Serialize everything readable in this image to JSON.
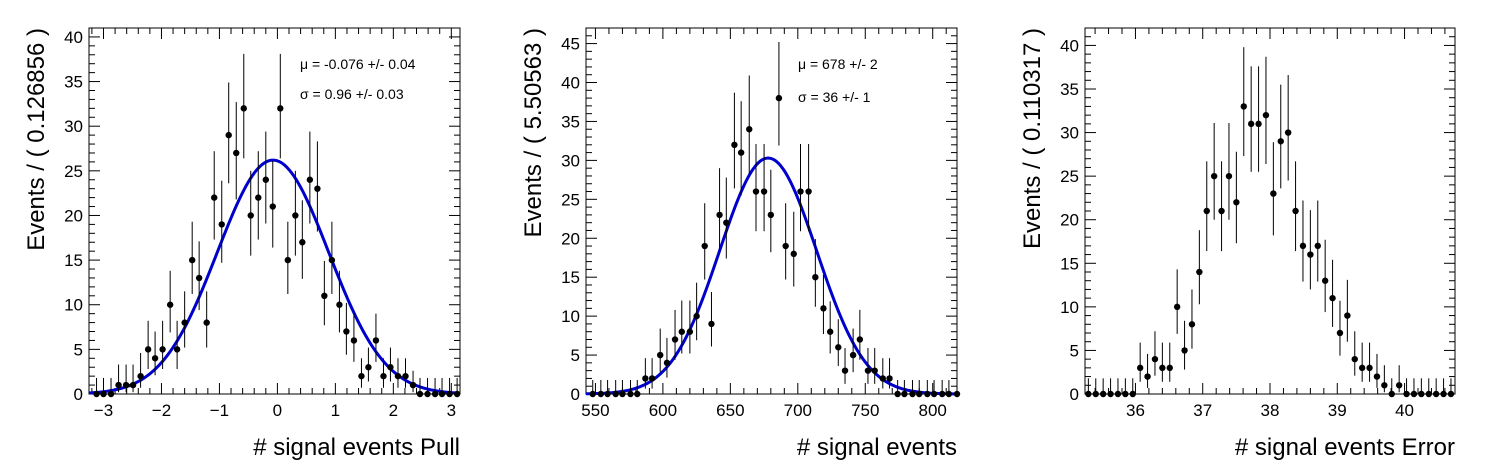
{
  "chart_data": [
    {
      "type": "scatter",
      "xlabel": "# signal events Pull",
      "ylabel": "Events / ( 0.126856 )",
      "xlim": [
        -3.25,
        3.15
      ],
      "ylim": [
        0,
        41
      ],
      "xticks": [
        -3,
        -2,
        -1,
        0,
        1,
        2,
        3
      ],
      "xtick_labels": [
        "−3",
        "−2",
        "−1",
        "0",
        "1",
        "2",
        "3"
      ],
      "yticks": [
        0,
        5,
        10,
        15,
        20,
        25,
        30,
        35,
        40
      ],
      "ytick_labels": [
        "0",
        "5",
        "10",
        "15",
        "20",
        "25",
        "30",
        "35",
        "40"
      ],
      "annotations": [
        "μ = -0.076 +/- 0.04",
        "σ =  0.96 +/- 0.03"
      ],
      "fit": {
        "mu": -0.076,
        "sigma": 0.96,
        "amplitude": 26.2,
        "color": "#0000cc"
      },
      "series": [
        {
          "x": [
            -3.12,
            -3.0,
            -2.87,
            -2.74,
            -2.61,
            -2.49,
            -2.36,
            -2.23,
            -2.11,
            -1.98,
            -1.85,
            -1.73,
            -1.6,
            -1.47,
            -1.35,
            -1.22,
            -1.09,
            -0.96,
            -0.84,
            -0.71,
            -0.58,
            -0.46,
            -0.33,
            -0.2,
            -0.08,
            0.05,
            0.18,
            0.31,
            0.43,
            0.56,
            0.69,
            0.81,
            0.94,
            1.07,
            1.19,
            1.32,
            1.45,
            1.57,
            1.7,
            1.83,
            1.95,
            2.08,
            2.21,
            2.34,
            2.46,
            2.59,
            2.72,
            2.84,
            2.97,
            3.1
          ],
          "y": [
            0,
            0,
            0,
            1,
            1,
            1,
            2,
            5,
            4,
            5,
            10,
            5,
            8,
            15,
            13,
            8,
            22,
            19,
            29,
            27,
            32,
            20,
            22,
            24,
            21,
            32,
            15,
            20,
            17,
            24,
            23,
            11,
            15,
            10,
            7,
            6,
            2,
            3,
            6,
            2,
            3,
            2,
            2,
            1,
            0,
            0,
            0,
            0,
            0,
            0
          ],
          "err_up": [
            1.8,
            1.8,
            1.8,
            2.3,
            2.3,
            2.3,
            2.6,
            3.2,
            3.0,
            3.2,
            3.8,
            3.2,
            3.5,
            4.3,
            4.1,
            3.5,
            5.2,
            4.9,
            5.9,
            5.7,
            6.1,
            5.0,
            5.2,
            5.4,
            5.1,
            6.1,
            4.3,
            5.0,
            4.7,
            5.4,
            5.3,
            3.9,
            4.3,
            3.8,
            3.2,
            3.0,
            2.0,
            2.2,
            3.0,
            2.0,
            2.2,
            2.0,
            2.0,
            1.6,
            1.8,
            1.8,
            1.8,
            1.8,
            1.8,
            1.8
          ],
          "err_down": [
            0,
            0,
            0,
            0.8,
            0.8,
            0.8,
            1.3,
            2.2,
            1.9,
            2.2,
            3.1,
            2.2,
            2.8,
            3.8,
            3.6,
            2.8,
            4.7,
            4.3,
            5.4,
            5.2,
            5.6,
            4.5,
            4.7,
            4.9,
            4.6,
            5.6,
            3.8,
            4.5,
            4.1,
            4.9,
            4.8,
            3.3,
            3.8,
            3.1,
            2.6,
            2.4,
            1.3,
            1.6,
            2.4,
            1.3,
            1.6,
            1.3,
            1.3,
            0.8,
            0,
            0,
            0,
            0,
            0,
            0
          ]
        }
      ]
    },
    {
      "type": "scatter",
      "xlabel": "# signal events",
      "ylabel": "Events / ( 5.50563 )",
      "xlim": [
        543,
        818
      ],
      "ylim": [
        0,
        47
      ],
      "xticks": [
        550,
        600,
        650,
        700,
        750,
        800
      ],
      "xtick_labels": [
        "550",
        "600",
        "650",
        "700",
        "750",
        "800"
      ],
      "yticks": [
        0,
        5,
        10,
        15,
        20,
        25,
        30,
        35,
        40,
        45
      ],
      "ytick_labels": [
        "0",
        "5",
        "10",
        "15",
        "20",
        "25",
        "30",
        "35",
        "40",
        "45"
      ],
      "annotations": [
        "μ =  678 +/- 2",
        "σ =  36 +/- 1"
      ],
      "fit": {
        "mu": 678,
        "sigma": 36,
        "amplitude": 30.3,
        "color": "#0000cc"
      },
      "series": [
        {
          "x": [
            548,
            554,
            559,
            565,
            570,
            576,
            581,
            587,
            592,
            598,
            603,
            609,
            614,
            620,
            625,
            631,
            636,
            642,
            647,
            653,
            658,
            664,
            669,
            675,
            680,
            686,
            691,
            697,
            702,
            708,
            713,
            719,
            724,
            730,
            735,
            741,
            746,
            752,
            757,
            763,
            768,
            774,
            779,
            785,
            790,
            796,
            801,
            807,
            812,
            818
          ],
          "y": [
            0,
            0,
            0,
            0,
            0,
            0,
            0,
            2,
            2,
            5,
            4,
            7,
            8,
            8,
            10,
            19,
            9,
            23,
            22,
            32,
            31,
            34,
            26,
            26,
            23,
            38,
            19,
            18,
            26,
            26,
            15,
            11,
            8,
            6,
            3,
            5,
            7,
            3,
            3,
            2,
            2,
            0,
            0,
            0,
            0,
            0,
            0,
            0,
            0,
            0
          ],
          "err_up": [
            1.8,
            1.8,
            1.8,
            1.8,
            1.8,
            1.8,
            1.8,
            2.6,
            2.6,
            3.4,
            3.2,
            3.8,
            4.0,
            4.0,
            4.3,
            5.5,
            4.1,
            6.0,
            5.8,
            6.7,
            6.6,
            6.9,
            6.1,
            6.1,
            5.8,
            7.2,
            5.5,
            5.4,
            6.1,
            6.1,
            4.9,
            4.3,
            3.9,
            3.6,
            2.9,
            3.4,
            3.8,
            2.9,
            2.9,
            2.6,
            2.6,
            1.8,
            1.8,
            1.8,
            1.8,
            1.8,
            1.8,
            1.8,
            1.8,
            1.8
          ],
          "err_down": [
            0,
            0,
            0,
            0,
            0,
            0,
            0,
            1.3,
            1.3,
            2.2,
            1.9,
            2.6,
            2.8,
            2.8,
            3.1,
            4.3,
            2.9,
            4.8,
            4.6,
            5.6,
            5.5,
            5.8,
            5.1,
            5.1,
            4.8,
            6.1,
            4.3,
            4.2,
            5.1,
            5.1,
            3.8,
            3.3,
            2.8,
            2.4,
            1.7,
            2.2,
            2.6,
            1.7,
            1.7,
            1.3,
            1.3,
            0,
            0,
            0,
            0,
            0,
            0,
            0,
            0,
            0
          ]
        }
      ]
    },
    {
      "type": "scatter",
      "xlabel": "# signal events Error",
      "ylabel": "Events / ( 0.110317 )",
      "xlim": [
        35.25,
        40.75
      ],
      "ylim": [
        0,
        42
      ],
      "xticks": [
        36,
        37,
        38,
        39,
        40
      ],
      "xtick_labels": [
        "36",
        "37",
        "38",
        "39",
        "40"
      ],
      "yticks": [
        0,
        5,
        10,
        15,
        20,
        25,
        30,
        35,
        40
      ],
      "ytick_labels": [
        "0",
        "5",
        "10",
        "15",
        "20",
        "25",
        "30",
        "35",
        "40"
      ],
      "annotations": [],
      "series": [
        {
          "x": [
            35.3,
            35.41,
            35.52,
            35.63,
            35.74,
            35.85,
            35.96,
            36.07,
            36.18,
            36.29,
            36.4,
            36.51,
            36.62,
            36.73,
            36.84,
            36.95,
            37.06,
            37.17,
            37.28,
            37.39,
            37.5,
            37.61,
            37.72,
            37.83,
            37.94,
            38.05,
            38.16,
            38.27,
            38.38,
            38.49,
            38.6,
            38.71,
            38.82,
            38.93,
            39.04,
            39.15,
            39.26,
            39.37,
            39.48,
            39.59,
            39.7,
            39.81,
            39.92,
            40.03,
            40.14,
            40.25,
            40.36,
            40.47,
            40.58,
            40.69
          ],
          "y": [
            0,
            0,
            0,
            0,
            0,
            0,
            0,
            3,
            2,
            4,
            3,
            3,
            10,
            5,
            8,
            14,
            21,
            25,
            21,
            25,
            22,
            33,
            31,
            31,
            32,
            23,
            29,
            30,
            21,
            17,
            16,
            17,
            13,
            11,
            7,
            9,
            4,
            3,
            3,
            2,
            1,
            0,
            1,
            0,
            0,
            0,
            0,
            0,
            0,
            0
          ],
          "err_up": [
            1.8,
            1.8,
            1.8,
            1.8,
            1.8,
            1.8,
            1.8,
            2.9,
            2.6,
            3.2,
            2.9,
            2.9,
            4.3,
            3.4,
            4.0,
            4.8,
            5.7,
            6.1,
            5.7,
            6.1,
            5.8,
            6.8,
            6.6,
            6.6,
            6.7,
            5.9,
            6.5,
            6.6,
            5.7,
            5.2,
            5.1,
            5.2,
            4.7,
            4.4,
            3.7,
            4.1,
            3.2,
            2.9,
            2.9,
            2.6,
            2.3,
            1.8,
            2.3,
            1.8,
            1.8,
            1.8,
            1.8,
            1.8,
            1.8,
            1.8
          ],
          "err_down": [
            0,
            0,
            0,
            0,
            0,
            0,
            0,
            1.6,
            1.3,
            1.9,
            1.6,
            1.6,
            3.1,
            2.2,
            2.8,
            3.7,
            4.6,
            5.0,
            4.6,
            5.0,
            4.7,
            5.7,
            5.5,
            5.5,
            5.6,
            4.8,
            5.4,
            5.5,
            4.6,
            4.1,
            4.0,
            4.1,
            3.6,
            3.3,
            2.6,
            3.0,
            1.9,
            1.6,
            1.6,
            1.3,
            0.8,
            0,
            0.8,
            0,
            0,
            0,
            0,
            0,
            0,
            0
          ]
        }
      ]
    }
  ]
}
